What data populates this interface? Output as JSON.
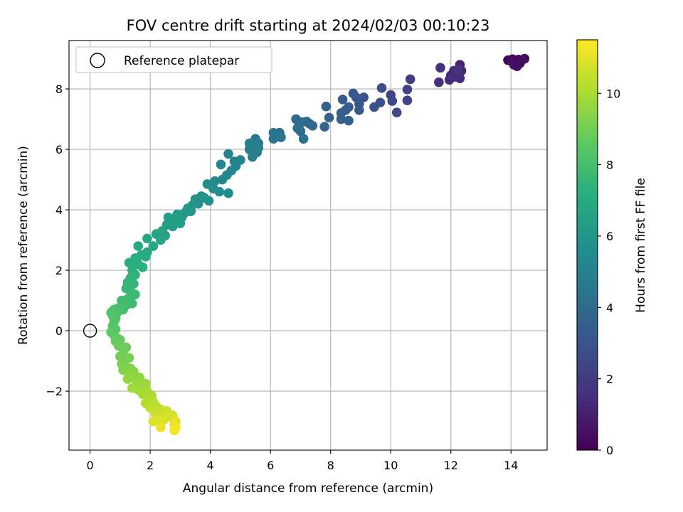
{
  "chart_data": {
    "type": "scatter",
    "title": "FOV centre drift starting at 2024/02/03 00:10:23",
    "xlabel": "Angular distance from reference (arcmin)",
    "ylabel": "Rotation from reference (arcmin)",
    "xlim": [
      -0.7,
      15.2
    ],
    "ylim": [
      -3.95,
      9.6
    ],
    "xticks": [
      0,
      2,
      4,
      6,
      8,
      10,
      12,
      14
    ],
    "yticks": [
      -2,
      0,
      2,
      4,
      6,
      8
    ],
    "xtick_labels": [
      "0",
      "2",
      "4",
      "6",
      "8",
      "10",
      "12",
      "14"
    ],
    "ytick_labels": [
      "−2",
      "0",
      "2",
      "4",
      "6",
      "8"
    ],
    "grid": true,
    "legend": {
      "position": "top-left",
      "entries": [
        "Reference platepar"
      ]
    },
    "reference_point": {
      "x": 0,
      "y": 0
    },
    "colorbar": {
      "label": "Hours from first FF file",
      "colormap": "viridis",
      "range": [
        0,
        11.5
      ],
      "ticks": [
        0,
        2,
        4,
        6,
        8,
        10
      ],
      "tick_labels": [
        "0",
        "2",
        "4",
        "6",
        "8",
        "10"
      ]
    },
    "points": [
      {
        "x": 13.9,
        "y": 8.95,
        "t": 0.05
      },
      {
        "x": 14.05,
        "y": 8.98,
        "t": 0.1
      },
      {
        "x": 14.15,
        "y": 8.9,
        "t": 0.15
      },
      {
        "x": 14.25,
        "y": 8.97,
        "t": 0.2
      },
      {
        "x": 14.3,
        "y": 8.85,
        "t": 0.25
      },
      {
        "x": 14.45,
        "y": 9.0,
        "t": 0.3
      },
      {
        "x": 14.1,
        "y": 8.8,
        "t": 0.35
      },
      {
        "x": 14.2,
        "y": 8.75,
        "t": 0.4
      },
      {
        "x": 14.35,
        "y": 8.95,
        "t": 0.45
      },
      {
        "x": 14.0,
        "y": 8.92,
        "t": 0.5
      },
      {
        "x": 12.3,
        "y": 8.8,
        "t": 1.1
      },
      {
        "x": 12.35,
        "y": 8.6,
        "t": 1.15
      },
      {
        "x": 12.1,
        "y": 8.6,
        "t": 1.2
      },
      {
        "x": 12.2,
        "y": 8.5,
        "t": 1.25
      },
      {
        "x": 12.0,
        "y": 8.45,
        "t": 1.3
      },
      {
        "x": 12.3,
        "y": 8.35,
        "t": 1.35
      },
      {
        "x": 11.95,
        "y": 8.3,
        "t": 1.4
      },
      {
        "x": 12.15,
        "y": 8.4,
        "t": 1.45
      },
      {
        "x": 11.65,
        "y": 8.7,
        "t": 1.5
      },
      {
        "x": 11.6,
        "y": 8.22,
        "t": 1.55
      },
      {
        "x": 12.25,
        "y": 8.65,
        "t": 1.6
      },
      {
        "x": 10.65,
        "y": 8.32,
        "t": 2.1
      },
      {
        "x": 10.55,
        "y": 7.98,
        "t": 2.2
      },
      {
        "x": 10.55,
        "y": 7.62,
        "t": 2.3
      },
      {
        "x": 10.0,
        "y": 7.8,
        "t": 2.4
      },
      {
        "x": 10.05,
        "y": 7.6,
        "t": 2.5
      },
      {
        "x": 10.2,
        "y": 7.22,
        "t": 2.6
      },
      {
        "x": 9.7,
        "y": 8.03,
        "t": 2.7
      },
      {
        "x": 9.65,
        "y": 7.55,
        "t": 2.8
      },
      {
        "x": 9.45,
        "y": 7.4,
        "t": 2.9
      },
      {
        "x": 9.1,
        "y": 7.72,
        "t": 3.0
      },
      {
        "x": 8.95,
        "y": 7.5,
        "t": 3.05
      },
      {
        "x": 8.95,
        "y": 7.3,
        "t": 3.1
      },
      {
        "x": 8.75,
        "y": 7.85,
        "t": 3.15
      },
      {
        "x": 8.85,
        "y": 7.72,
        "t": 3.2
      },
      {
        "x": 8.6,
        "y": 7.4,
        "t": 3.25
      },
      {
        "x": 8.4,
        "y": 7.65,
        "t": 3.3
      },
      {
        "x": 8.35,
        "y": 7.2,
        "t": 3.35
      },
      {
        "x": 8.5,
        "y": 7.3,
        "t": 3.4
      },
      {
        "x": 8.35,
        "y": 7.0,
        "t": 3.45
      },
      {
        "x": 8.6,
        "y": 6.95,
        "t": 3.5
      },
      {
        "x": 7.85,
        "y": 7.42,
        "t": 3.6
      },
      {
        "x": 7.95,
        "y": 7.05,
        "t": 3.65
      },
      {
        "x": 7.8,
        "y": 6.75,
        "t": 3.7
      },
      {
        "x": 7.4,
        "y": 6.78,
        "t": 3.8
      },
      {
        "x": 7.3,
        "y": 6.85,
        "t": 3.85
      },
      {
        "x": 7.2,
        "y": 6.92,
        "t": 3.9
      },
      {
        "x": 7.05,
        "y": 6.9,
        "t": 3.95
      },
      {
        "x": 6.85,
        "y": 7.0,
        "t": 4.0
      },
      {
        "x": 6.9,
        "y": 6.7,
        "t": 4.05
      },
      {
        "x": 7.0,
        "y": 6.6,
        "t": 4.1
      },
      {
        "x": 7.1,
        "y": 6.35,
        "t": 4.15
      },
      {
        "x": 6.95,
        "y": 6.8,
        "t": 4.2
      },
      {
        "x": 6.3,
        "y": 6.55,
        "t": 4.3
      },
      {
        "x": 6.2,
        "y": 6.5,
        "t": 4.35
      },
      {
        "x": 6.1,
        "y": 6.55,
        "t": 4.4
      },
      {
        "x": 6.35,
        "y": 6.4,
        "t": 4.45
      },
      {
        "x": 6.1,
        "y": 6.35,
        "t": 4.5
      },
      {
        "x": 5.5,
        "y": 6.35,
        "t": 4.6
      },
      {
        "x": 5.6,
        "y": 6.2,
        "t": 4.65
      },
      {
        "x": 5.4,
        "y": 6.1,
        "t": 4.7
      },
      {
        "x": 5.3,
        "y": 6.0,
        "t": 4.75
      },
      {
        "x": 5.55,
        "y": 5.9,
        "t": 4.8
      },
      {
        "x": 5.4,
        "y": 5.75,
        "t": 4.85
      },
      {
        "x": 5.6,
        "y": 6.05,
        "t": 4.9
      },
      {
        "x": 5.3,
        "y": 6.2,
        "t": 4.95
      },
      {
        "x": 5.0,
        "y": 5.65,
        "t": 5.05
      },
      {
        "x": 4.8,
        "y": 5.6,
        "t": 5.1
      },
      {
        "x": 4.6,
        "y": 5.85,
        "t": 5.15
      },
      {
        "x": 4.85,
        "y": 5.45,
        "t": 5.2
      },
      {
        "x": 4.7,
        "y": 5.3,
        "t": 5.25
      },
      {
        "x": 4.55,
        "y": 5.15,
        "t": 5.3
      },
      {
        "x": 4.35,
        "y": 5.5,
        "t": 5.35
      },
      {
        "x": 4.4,
        "y": 5.0,
        "t": 5.4
      },
      {
        "x": 4.15,
        "y": 4.95,
        "t": 5.45
      },
      {
        "x": 3.9,
        "y": 4.85,
        "t": 5.5
      },
      {
        "x": 4.1,
        "y": 4.7,
        "t": 5.55
      },
      {
        "x": 4.6,
        "y": 4.55,
        "t": 5.6
      },
      {
        "x": 4.3,
        "y": 4.6,
        "t": 5.65
      },
      {
        "x": 3.95,
        "y": 4.3,
        "t": 5.75
      },
      {
        "x": 3.8,
        "y": 4.4,
        "t": 5.8
      },
      {
        "x": 3.7,
        "y": 4.45,
        "t": 5.85
      },
      {
        "x": 3.5,
        "y": 4.35,
        "t": 5.9
      },
      {
        "x": 3.6,
        "y": 4.2,
        "t": 5.95
      },
      {
        "x": 3.4,
        "y": 4.15,
        "t": 6.0
      },
      {
        "x": 3.35,
        "y": 3.95,
        "t": 6.05
      },
      {
        "x": 3.15,
        "y": 3.9,
        "t": 6.1
      },
      {
        "x": 3.05,
        "y": 3.75,
        "t": 6.15
      },
      {
        "x": 3.25,
        "y": 4.05,
        "t": 6.2
      },
      {
        "x": 2.9,
        "y": 3.85,
        "t": 6.25
      },
      {
        "x": 3.0,
        "y": 3.55,
        "t": 6.3
      },
      {
        "x": 2.75,
        "y": 3.7,
        "t": 6.35
      },
      {
        "x": 2.6,
        "y": 3.75,
        "t": 6.4
      },
      {
        "x": 2.55,
        "y": 3.5,
        "t": 6.45
      },
      {
        "x": 2.75,
        "y": 3.45,
        "t": 6.5
      },
      {
        "x": 2.4,
        "y": 3.3,
        "t": 6.55
      },
      {
        "x": 2.5,
        "y": 3.15,
        "t": 6.6
      },
      {
        "x": 2.2,
        "y": 3.2,
        "t": 6.65
      },
      {
        "x": 2.35,
        "y": 3.0,
        "t": 6.7
      },
      {
        "x": 1.9,
        "y": 3.05,
        "t": 6.8
      },
      {
        "x": 2.1,
        "y": 2.8,
        "t": 6.85
      },
      {
        "x": 1.9,
        "y": 2.6,
        "t": 6.9
      },
      {
        "x": 1.6,
        "y": 2.8,
        "t": 6.95
      },
      {
        "x": 1.7,
        "y": 2.5,
        "t": 7.0
      },
      {
        "x": 1.85,
        "y": 2.45,
        "t": 7.05
      },
      {
        "x": 1.5,
        "y": 2.4,
        "t": 7.1
      },
      {
        "x": 1.6,
        "y": 2.2,
        "t": 7.15
      },
      {
        "x": 1.3,
        "y": 2.25,
        "t": 7.2
      },
      {
        "x": 1.75,
        "y": 2.1,
        "t": 7.25
      },
      {
        "x": 1.4,
        "y": 2.0,
        "t": 7.3
      },
      {
        "x": 1.5,
        "y": 1.85,
        "t": 7.35
      },
      {
        "x": 1.35,
        "y": 1.75,
        "t": 7.4
      },
      {
        "x": 1.25,
        "y": 1.6,
        "t": 7.5
      },
      {
        "x": 1.45,
        "y": 1.55,
        "t": 7.55
      },
      {
        "x": 1.2,
        "y": 1.4,
        "t": 7.6
      },
      {
        "x": 1.35,
        "y": 1.3,
        "t": 7.65
      },
      {
        "x": 1.5,
        "y": 1.2,
        "t": 7.7
      },
      {
        "x": 1.25,
        "y": 1.05,
        "t": 7.75
      },
      {
        "x": 1.4,
        "y": 0.9,
        "t": 7.8
      },
      {
        "x": 1.2,
        "y": 0.85,
        "t": 7.85
      },
      {
        "x": 1.05,
        "y": 1.0,
        "t": 7.9
      },
      {
        "x": 1.1,
        "y": 0.7,
        "t": 8.0
      },
      {
        "x": 0.95,
        "y": 0.75,
        "t": 8.05
      },
      {
        "x": 0.8,
        "y": 0.7,
        "t": 8.1
      },
      {
        "x": 0.9,
        "y": 0.6,
        "t": 8.15
      },
      {
        "x": 0.75,
        "y": 0.5,
        "t": 8.2
      },
      {
        "x": 0.85,
        "y": 0.4,
        "t": 8.25
      },
      {
        "x": 0.7,
        "y": 0.6,
        "t": 8.3
      },
      {
        "x": 0.8,
        "y": 0.3,
        "t": 8.35
      },
      {
        "x": 0.75,
        "y": 0.15,
        "t": 8.4
      },
      {
        "x": 0.85,
        "y": 0.05,
        "t": 8.45
      },
      {
        "x": 0.7,
        "y": -0.05,
        "t": 8.5
      },
      {
        "x": 0.8,
        "y": -0.15,
        "t": 8.55
      },
      {
        "x": 0.9,
        "y": -0.25,
        "t": 8.6
      },
      {
        "x": 0.85,
        "y": -0.35,
        "t": 8.7
      },
      {
        "x": 1.0,
        "y": -0.3,
        "t": 8.75
      },
      {
        "x": 0.95,
        "y": -0.5,
        "t": 8.8
      },
      {
        "x": 1.2,
        "y": -0.55,
        "t": 8.9
      },
      {
        "x": 1.1,
        "y": -0.75,
        "t": 8.95
      },
      {
        "x": 1.0,
        "y": -0.85,
        "t": 9.0
      },
      {
        "x": 1.15,
        "y": -0.95,
        "t": 9.05
      },
      {
        "x": 1.3,
        "y": -0.9,
        "t": 9.1
      },
      {
        "x": 1.05,
        "y": -1.1,
        "t": 9.15
      },
      {
        "x": 1.2,
        "y": -1.2,
        "t": 9.2
      },
      {
        "x": 1.1,
        "y": -1.3,
        "t": 9.25
      },
      {
        "x": 1.35,
        "y": -1.25,
        "t": 9.3
      },
      {
        "x": 1.45,
        "y": -1.35,
        "t": 9.35
      },
      {
        "x": 1.3,
        "y": -1.45,
        "t": 9.4
      },
      {
        "x": 1.5,
        "y": -1.5,
        "t": 9.5
      },
      {
        "x": 1.65,
        "y": -1.55,
        "t": 9.55
      },
      {
        "x": 1.25,
        "y": -1.6,
        "t": 9.6
      },
      {
        "x": 1.55,
        "y": -1.7,
        "t": 9.65
      },
      {
        "x": 1.75,
        "y": -1.8,
        "t": 9.7
      },
      {
        "x": 1.85,
        "y": -1.75,
        "t": 9.75
      },
      {
        "x": 1.4,
        "y": -1.9,
        "t": 9.8
      },
      {
        "x": 1.6,
        "y": -1.95,
        "t": 9.85
      },
      {
        "x": 1.9,
        "y": -2.0,
        "t": 9.9
      },
      {
        "x": 1.75,
        "y": -2.1,
        "t": 9.95
      },
      {
        "x": 2.05,
        "y": -2.15,
        "t": 10.0
      },
      {
        "x": 1.95,
        "y": -2.25,
        "t": 10.1
      },
      {
        "x": 1.85,
        "y": -2.4,
        "t": 10.15
      },
      {
        "x": 2.1,
        "y": -2.35,
        "t": 10.2
      },
      {
        "x": 2.2,
        "y": -2.5,
        "t": 10.3
      },
      {
        "x": 2.0,
        "y": -2.55,
        "t": 10.35
      },
      {
        "x": 2.35,
        "y": -2.6,
        "t": 10.4
      },
      {
        "x": 2.15,
        "y": -2.7,
        "t": 10.5
      },
      {
        "x": 2.45,
        "y": -2.7,
        "t": 10.55
      },
      {
        "x": 2.3,
        "y": -2.8,
        "t": 10.6
      },
      {
        "x": 2.55,
        "y": -2.65,
        "t": 10.65
      },
      {
        "x": 2.6,
        "y": -2.85,
        "t": 10.7
      },
      {
        "x": 2.75,
        "y": -2.8,
        "t": 10.8
      },
      {
        "x": 2.2,
        "y": -2.95,
        "t": 10.85
      },
      {
        "x": 2.45,
        "y": -2.95,
        "t": 10.9
      },
      {
        "x": 2.1,
        "y": -3.0,
        "t": 10.95
      },
      {
        "x": 2.85,
        "y": -3.0,
        "t": 11.0
      },
      {
        "x": 2.8,
        "y": -3.1,
        "t": 11.1
      },
      {
        "x": 2.35,
        "y": -3.2,
        "t": 11.15
      },
      {
        "x": 2.85,
        "y": -3.2,
        "t": 11.25
      },
      {
        "x": 2.8,
        "y": -3.3,
        "t": 11.35
      }
    ]
  }
}
